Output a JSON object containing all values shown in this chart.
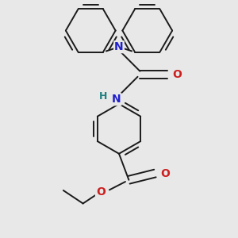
{
  "bg_color": "#e8e8e8",
  "bond_color": "#1a1a1a",
  "N_color": "#2020cc",
  "O_color": "#cc2020",
  "H_color": "#208080",
  "bond_width": 1.4,
  "figsize": [
    3.0,
    3.0
  ],
  "dpi": 100,
  "xlim": [
    -1.6,
    1.6
  ],
  "ylim": [
    -1.8,
    1.8
  ]
}
